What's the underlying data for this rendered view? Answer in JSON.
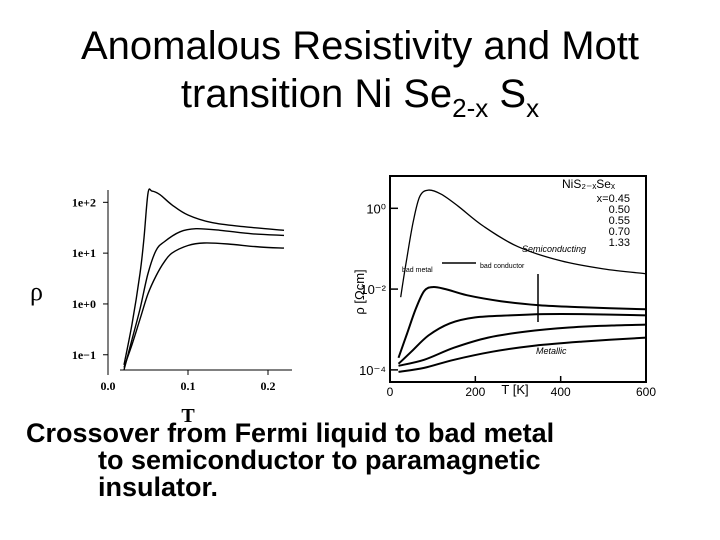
{
  "slide": {
    "title_line1": "Anomalous Resistivity and Mott",
    "title_line2_prefix": "transition Ni Se",
    "title_sub1": "2-x",
    "title_mid": " S",
    "title_sub2": "x",
    "caption_line1": "Crossover from Fermi liquid to bad metal",
    "caption_line2": "to semiconductor to paramagnetic",
    "caption_line3": "insulator."
  },
  "chart_data": [
    {
      "type": "line",
      "title": "",
      "xlabel": "T",
      "ylabel": "ρ",
      "x_scale": "linear",
      "y_scale": "log",
      "xlim": [
        0.0,
        0.23
      ],
      "ylim_log10": [
        -1.3,
        2.4
      ],
      "x_ticks": [
        "0.0",
        "0.1",
        "0.2"
      ],
      "x_tick_values": [
        0.0,
        0.1,
        0.2
      ],
      "y_ticks": [
        "1e−1",
        "1e+0",
        "1e+1",
        "1e+2"
      ],
      "y_tick_values_log10": [
        -1,
        0,
        1,
        2
      ],
      "grid": false,
      "legend": "none",
      "series": [
        {
          "x": [
            0.02,
            0.03,
            0.04,
            0.045,
            0.05,
            0.055,
            0.065,
            0.08,
            0.1,
            0.13,
            0.17,
            0.22
          ],
          "log10_y": [
            -1.2,
            -0.4,
            0.6,
            1.3,
            2.18,
            2.22,
            2.15,
            1.95,
            1.75,
            1.6,
            1.52,
            1.45
          ]
        },
        {
          "x": [
            0.02,
            0.03,
            0.04,
            0.05,
            0.06,
            0.07,
            0.09,
            0.11,
            0.14,
            0.18,
            0.22
          ],
          "log10_y": [
            -1.3,
            -0.7,
            -0.1,
            0.6,
            1.05,
            1.22,
            1.42,
            1.48,
            1.45,
            1.38,
            1.35
          ]
        },
        {
          "x": [
            0.02,
            0.03,
            0.04,
            0.05,
            0.06,
            0.07,
            0.08,
            0.1,
            0.12,
            0.15,
            0.19,
            0.22
          ],
          "log10_y": [
            -1.25,
            -0.8,
            -0.3,
            0.2,
            0.55,
            0.82,
            1.0,
            1.15,
            1.2,
            1.18,
            1.12,
            1.1
          ]
        }
      ]
    },
    {
      "type": "line",
      "title": "",
      "xlabel": "T [K]",
      "ylabel": "ρ [Ωcm]",
      "x_scale": "linear",
      "y_scale": "log",
      "xlim": [
        0,
        600
      ],
      "ylim_log10": [
        -4.3,
        0.8
      ],
      "x_ticks": [
        "0",
        "200",
        "400",
        "600"
      ],
      "x_tick_values": [
        0,
        200,
        400,
        600
      ],
      "y_ticks": [
        "10⁰",
        "10⁻²",
        "10⁻⁴"
      ],
      "y_tick_values_log10": [
        0,
        -2,
        -4
      ],
      "grid": false,
      "legend_title": "NiS₂₋ₓSeₓ",
      "legend_entries": [
        "x=0.45",
        "0.50",
        "0.55",
        "0.70",
        "1.33"
      ],
      "legend": "top-right",
      "annotations": [
        "Semiconducting",
        "bad metal",
        "Metallic",
        "bad conductor"
      ],
      "series": [
        {
          "name": "x=0.45",
          "x": [
            25,
            40,
            55,
            70,
            90,
            120,
            160,
            220,
            300,
            400,
            500,
            600
          ],
          "log10_y": [
            -2.2,
            -1.2,
            -0.3,
            0.3,
            0.45,
            0.35,
            0.05,
            -0.45,
            -0.95,
            -1.3,
            -1.5,
            -1.62
          ]
        },
        {
          "name": "0.50",
          "x": [
            20,
            40,
            60,
            80,
            100,
            130,
            180,
            260,
            350,
            450,
            600
          ],
          "log10_y": [
            -3.7,
            -3.1,
            -2.5,
            -2.05,
            -1.95,
            -2.0,
            -2.15,
            -2.3,
            -2.4,
            -2.45,
            -2.5
          ]
        },
        {
          "name": "0.55",
          "x": [
            20,
            50,
            90,
            140,
            200,
            280,
            360,
            450,
            600
          ],
          "log10_y": [
            -3.85,
            -3.55,
            -3.15,
            -2.85,
            -2.7,
            -2.65,
            -2.62,
            -2.62,
            -2.65
          ]
        },
        {
          "name": "0.70",
          "x": [
            20,
            80,
            150,
            230,
            320,
            420,
            520,
            600
          ],
          "log10_y": [
            -3.9,
            -3.75,
            -3.45,
            -3.2,
            -3.05,
            -2.95,
            -2.9,
            -2.88
          ]
        },
        {
          "name": "1.33",
          "x": [
            20,
            80,
            150,
            240,
            340,
            450,
            600
          ],
          "log10_y": [
            -4.05,
            -3.95,
            -3.75,
            -3.55,
            -3.4,
            -3.3,
            -3.2
          ]
        }
      ]
    }
  ]
}
